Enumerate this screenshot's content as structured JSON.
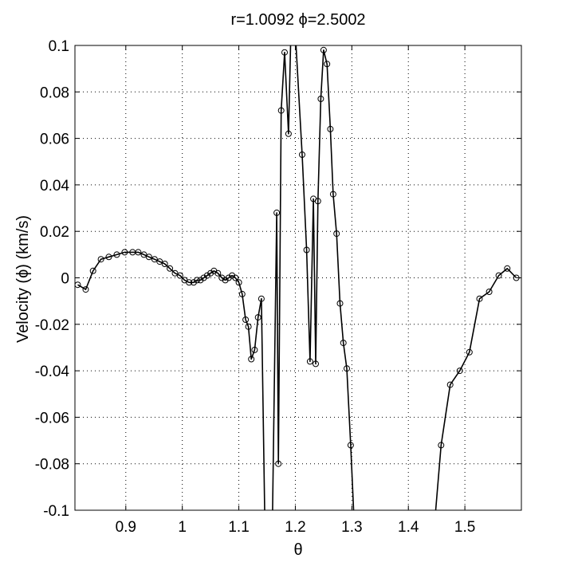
{
  "chart_data": {
    "type": "line",
    "title": "r=1.0092      ϕ=2.5002",
    "xlabel": "θ",
    "ylabel": "Velocity (ϕ) (km/s)",
    "xlim": [
      0.81,
      1.6
    ],
    "ylim": [
      -0.1,
      0.1
    ],
    "xticks": [
      0.9,
      1,
      1.1,
      1.2,
      1.3,
      1.4,
      1.5
    ],
    "xtick_labels": [
      "0.9",
      "1",
      "1.1",
      "1.2",
      "1.3",
      "1.4",
      "1.5"
    ],
    "yticks": [
      -0.1,
      -0.08,
      -0.06,
      -0.04,
      -0.02,
      0,
      0.02,
      0.04,
      0.06,
      0.08,
      0.1
    ],
    "ytick_labels": [
      "-0.1",
      "-0.08",
      "-0.06",
      "-0.04",
      "-0.02",
      "0",
      "0.02",
      "0.04",
      "0.06",
      "0.08",
      "0.1"
    ],
    "grid": true,
    "marker": "circle",
    "color": "#000000",
    "series": [
      {
        "x": [
          0.815,
          0.829,
          0.842,
          0.856,
          0.87,
          0.884,
          0.898,
          0.912,
          0.922,
          0.932,
          0.941,
          0.951,
          0.96,
          0.969,
          0.978,
          0.987,
          0.996,
          1.004,
          1.012,
          1.02,
          1.026,
          1.032,
          1.038,
          1.044,
          1.05,
          1.056,
          1.063,
          1.07,
          1.076,
          1.082,
          1.088,
          1.094,
          1.1,
          1.106,
          1.112,
          1.117,
          1.122,
          1.128,
          1.134,
          1.14,
          1.146,
          1.149,
          1.158,
          1.167,
          1.17,
          1.175,
          1.181,
          1.188,
          1.193,
          1.199,
          1.212,
          1.22,
          1.226,
          1.232,
          1.236,
          1.24,
          1.245,
          1.25,
          1.256,
          1.262,
          1.267,
          1.273,
          1.279,
          1.285,
          1.291,
          1.298,
          1.304,
          1.311,
          1.322,
          1.445,
          1.458,
          1.474,
          1.491,
          1.508,
          1.526,
          1.543,
          1.56,
          1.575,
          1.591
        ],
        "y": [
          -0.003,
          -0.005,
          0.003,
          0.008,
          0.009,
          0.01,
          0.011,
          0.011,
          0.011,
          0.01,
          0.009,
          0.008,
          0.007,
          0.006,
          0.004,
          0.002,
          0.001,
          -0.001,
          -0.002,
          -0.002,
          -0.001,
          -0.001,
          0.0,
          0.001,
          0.002,
          0.003,
          0.002,
          -0.0,
          -0.001,
          0.0,
          0.001,
          0.0,
          -0.002,
          -0.007,
          -0.018,
          -0.021,
          -0.035,
          -0.031,
          -0.017,
          -0.009,
          -0.105,
          -0.11,
          -0.13,
          0.028,
          -0.08,
          0.072,
          0.097,
          0.062,
          0.115,
          0.11,
          0.053,
          0.012,
          -0.036,
          0.034,
          -0.037,
          0.033,
          0.077,
          0.098,
          0.092,
          0.064,
          0.036,
          0.019,
          -0.011,
          -0.028,
          -0.039,
          -0.072,
          -0.105,
          -0.12,
          -0.12,
          -0.11,
          -0.072,
          -0.046,
          -0.04,
          -0.032,
          -0.009,
          -0.006,
          0.001,
          0.004,
          0.0
        ]
      }
    ]
  }
}
